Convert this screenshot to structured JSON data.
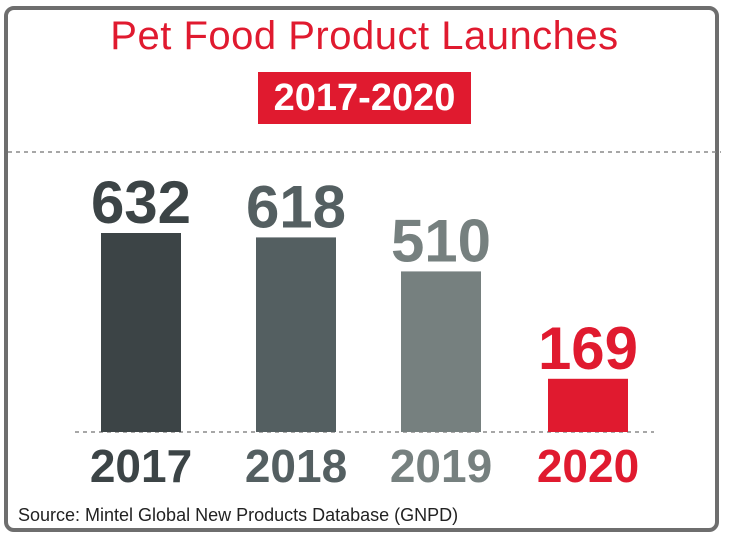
{
  "chart_data": {
    "type": "bar",
    "title": "Pet Food Product Launches",
    "subtitle": "2017-2020",
    "categories": [
      "2017",
      "2018",
      "2019",
      "2020"
    ],
    "values": [
      632,
      618,
      510,
      169
    ],
    "colors": [
      "#3c4446",
      "#545f61",
      "#76807f",
      "#e01a2f"
    ],
    "value_labels": [
      "632",
      "618",
      "510",
      "169"
    ],
    "ylim": [
      0,
      632
    ],
    "grid": false
  },
  "source": "Source: Mintel Global New Products Database (GNPD)"
}
